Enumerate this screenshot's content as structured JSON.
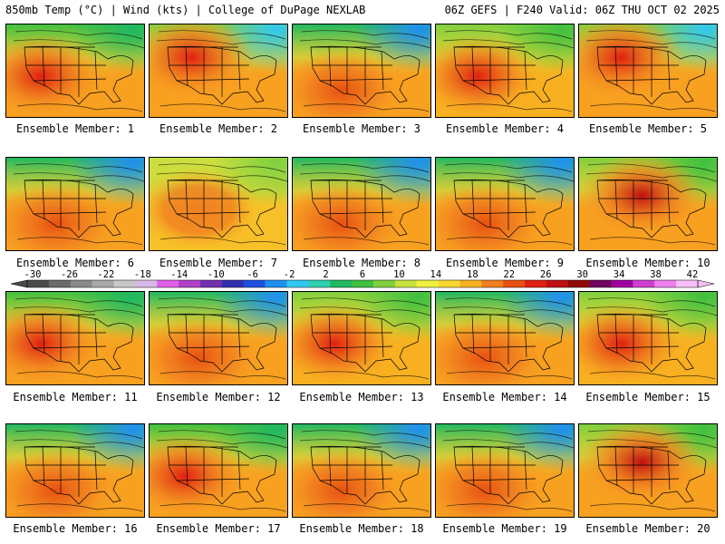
{
  "header": {
    "left": "850mb Temp (°C) | Wind (kts) | College of DuPage NEXLAB",
    "right": "06Z GEFS | F240 Valid: 06Z THU OCT 02 2025"
  },
  "colorbar": {
    "ticks": [
      "-30",
      "-26",
      "-22",
      "-18",
      "-14",
      "-10",
      "-6",
      "-2",
      "2",
      "6",
      "10",
      "14",
      "18",
      "22",
      "26",
      "30",
      "34",
      "38",
      "42"
    ],
    "colors": [
      "#4a4a4a",
      "#6a6a6a",
      "#8a8a8a",
      "#a8a8a8",
      "#c8c8c8",
      "#d8b8e8",
      "#e060e8",
      "#b040c8",
      "#7030b0",
      "#3030b0",
      "#2050e0",
      "#2090f0",
      "#30c8f0",
      "#30d0b0",
      "#20b860",
      "#40c040",
      "#80d040",
      "#c8e040",
      "#f0f040",
      "#f8d830",
      "#f8b020",
      "#f08020",
      "#e85010",
      "#e02010",
      "#c01010",
      "#900808",
      "#700060",
      "#a000a0",
      "#d040d0",
      "#f080f0",
      "#f8c0f8"
    ]
  },
  "ensemble_members": [
    {
      "label": "Ensemble Member: 1",
      "scheme": "warm-west"
    },
    {
      "label": "Ensemble Member: 2",
      "scheme": "warm-nw"
    },
    {
      "label": "Ensemble Member: 3",
      "scheme": "cool-north"
    },
    {
      "label": "Ensemble Member: 4",
      "scheme": "warm-center"
    },
    {
      "label": "Ensemble Member: 5",
      "scheme": "warm-nw"
    },
    {
      "label": "Ensemble Member: 6",
      "scheme": "cool-north"
    },
    {
      "label": "Ensemble Member: 7",
      "scheme": "mild"
    },
    {
      "label": "Ensemble Member: 8",
      "scheme": "cool-north"
    },
    {
      "label": "Ensemble Member: 9",
      "scheme": "cool-north"
    },
    {
      "label": "Ensemble Member: 10",
      "scheme": "hot-diagonal"
    },
    {
      "label": "Ensemble Member: 11",
      "scheme": "warm-west"
    },
    {
      "label": "Ensemble Member: 12",
      "scheme": "cool-north"
    },
    {
      "label": "Ensemble Member: 13",
      "scheme": "warm-center"
    },
    {
      "label": "Ensemble Member: 14",
      "scheme": "cool-north"
    },
    {
      "label": "Ensemble Member: 15",
      "scheme": "warm-center"
    },
    {
      "label": "Ensemble Member: 16",
      "scheme": "cool-north"
    },
    {
      "label": "Ensemble Member: 17",
      "scheme": "warm-west"
    },
    {
      "label": "Ensemble Member: 18",
      "scheme": "cool-north"
    },
    {
      "label": "Ensemble Member: 19",
      "scheme": "cool-north"
    },
    {
      "label": "Ensemble Member: 20",
      "scheme": "hot-diagonal"
    }
  ]
}
